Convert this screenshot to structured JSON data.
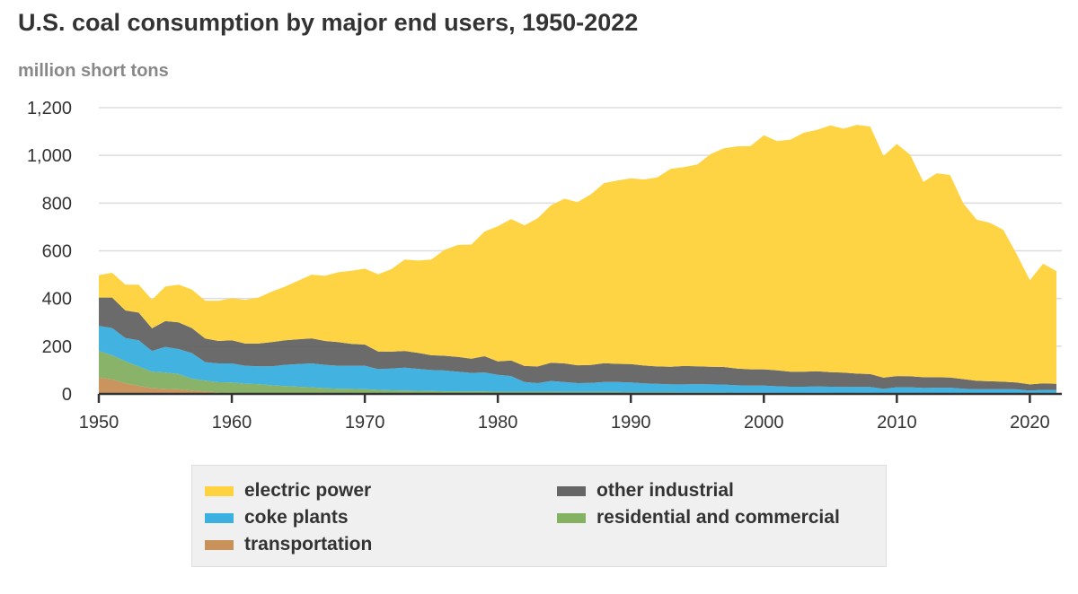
{
  "chart_data": {
    "type": "area",
    "stacked": true,
    "title": "U.S. coal consumption by major end users, 1950-2022",
    "ylabel": "million short tons",
    "xlabel": "",
    "xlim": [
      1950,
      2022
    ],
    "ylim": [
      0,
      1200
    ],
    "yticks": [
      0,
      200,
      400,
      600,
      800,
      1000,
      1200
    ],
    "ytick_labels": [
      "0",
      "200",
      "400",
      "600",
      "800",
      "1,000",
      "1,200"
    ],
    "xticks": [
      1950,
      1960,
      1970,
      1980,
      1990,
      2000,
      2010,
      2020
    ],
    "xtick_labels": [
      "1950",
      "1960",
      "1970",
      "1980",
      "1990",
      "2000",
      "2010",
      "2020"
    ],
    "grid": true,
    "legend_position": "bottom",
    "x_start": 1950,
    "series": [
      {
        "name": "transportation",
        "color": "#c8915a",
        "values": [
          68,
          61,
          44,
          34,
          24,
          21,
          19,
          14,
          10,
          6,
          4,
          3,
          2,
          1,
          1,
          1,
          1,
          1,
          0,
          0,
          0,
          0,
          0,
          0,
          0,
          0,
          0,
          0,
          0,
          0,
          0,
          0,
          0,
          0,
          0,
          0,
          0,
          0,
          0,
          0,
          0,
          0,
          0,
          0,
          0,
          0,
          0,
          0,
          0,
          0,
          0,
          0,
          0,
          0,
          0,
          0,
          0,
          0,
          0,
          0,
          0,
          0,
          0,
          0,
          0,
          0,
          0,
          0,
          0,
          0,
          0,
          0,
          0
        ]
      },
      {
        "name": "residential and commercial",
        "color": "#85b163",
        "values": [
          112,
          101,
          93,
          81,
          69,
          69,
          64,
          50,
          46,
          43,
          44,
          40,
          39,
          35,
          32,
          29,
          27,
          23,
          22,
          21,
          20,
          17,
          15,
          14,
          13,
          12,
          11,
          11,
          10,
          10,
          9,
          9,
          9,
          9,
          9,
          8,
          8,
          8,
          8,
          8,
          7,
          7,
          7,
          7,
          6,
          6,
          6,
          6,
          5,
          5,
          5,
          4,
          4,
          4,
          5,
          4,
          3,
          4,
          4,
          3,
          3,
          3,
          2,
          2,
          2,
          2,
          2,
          2,
          2,
          2,
          1,
          1,
          1
        ]
      },
      {
        "name": "coke plants",
        "color": "#3cb0e0",
        "values": [
          105,
          114,
          97,
          110,
          87,
          107,
          105,
          107,
          77,
          79,
          80,
          75,
          75,
          80,
          89,
          95,
          100,
          98,
          96,
          97,
          98,
          87,
          91,
          96,
          92,
          88,
          87,
          82,
          78,
          80,
          71,
          66,
          41,
          36,
          45,
          42,
          37,
          38,
          42,
          42,
          41,
          37,
          35,
          33,
          34,
          35,
          34,
          33,
          31,
          30,
          30,
          28,
          26,
          26,
          26,
          26,
          26,
          25,
          25,
          18,
          25,
          25,
          23,
          24,
          24,
          20,
          18,
          18,
          18,
          17,
          13,
          16,
          15
        ]
      },
      {
        "name": "other industrial",
        "color": "#666666",
        "values": [
          119,
          128,
          116,
          116,
          95,
          108,
          112,
          105,
          99,
          94,
          97,
          93,
          95,
          101,
          103,
          104,
          105,
          100,
          99,
          92,
          89,
          74,
          71,
          70,
          67,
          62,
          62,
          62,
          60,
          68,
          56,
          65,
          67,
          70,
          77,
          78,
          75,
          75,
          79,
          76,
          77,
          75,
          73,
          74,
          77,
          75,
          74,
          74,
          70,
          68,
          68,
          67,
          63,
          63,
          64,
          61,
          60,
          56,
          54,
          47,
          47,
          46,
          45,
          44,
          43,
          40,
          35,
          33,
          31,
          29,
          26,
          27,
          26
        ]
      },
      {
        "name": "electric power",
        "color": "#fed33f",
        "values": [
          94,
          104,
          108,
          117,
          120,
          145,
          158,
          162,
          159,
          169,
          176,
          183,
          193,
          212,
          225,
          246,
          267,
          273,
          293,
          306,
          318,
          324,
          346,
          383,
          387,
          401,
          444,
          470,
          478,
          523,
          567,
          593,
          590,
          622,
          660,
          690,
          684,
          716,
          755,
          769,
          779,
          780,
          793,
          830,
          834,
          846,
          892,
          917,
          932,
          936,
          981,
          961,
          973,
          1002,
          1012,
          1035,
          1023,
          1043,
          1038,
          930,
          973,
          929,
          819,
          855,
          849,
          736,
          676,
          664,
          637,
          539,
          437,
          502,
          473
        ]
      }
    ],
    "legend": [
      {
        "label": "electric power",
        "color": "#fed33f"
      },
      {
        "label": "other industrial",
        "color": "#666666"
      },
      {
        "label": "coke plants",
        "color": "#3cb0e0"
      },
      {
        "label": "residential and commercial",
        "color": "#85b163"
      },
      {
        "label": "transportation",
        "color": "#c8915a"
      }
    ]
  }
}
